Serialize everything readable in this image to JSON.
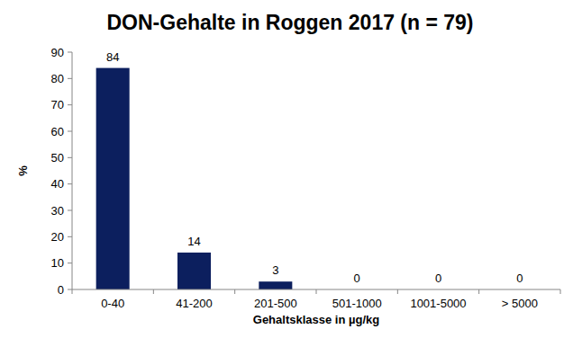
{
  "chart_data": {
    "type": "bar",
    "title": "DON-Gehalte in Roggen 2017 (n = 79)",
    "x_label": "Gehaltsklasse in µg/kg",
    "y_label": "%",
    "categories": [
      "0-40",
      "41-200",
      "201-500",
      "501-1000",
      "1001-5000",
      "> 5000"
    ],
    "values": [
      84,
      14,
      3,
      0,
      0,
      0
    ],
    "color": "#0c1f5e",
    "ylim": [
      0,
      90
    ],
    "yticks": [
      0,
      10,
      20,
      30,
      40,
      50,
      60,
      70,
      80,
      90
    ],
    "grid": false,
    "data_labels": true
  }
}
